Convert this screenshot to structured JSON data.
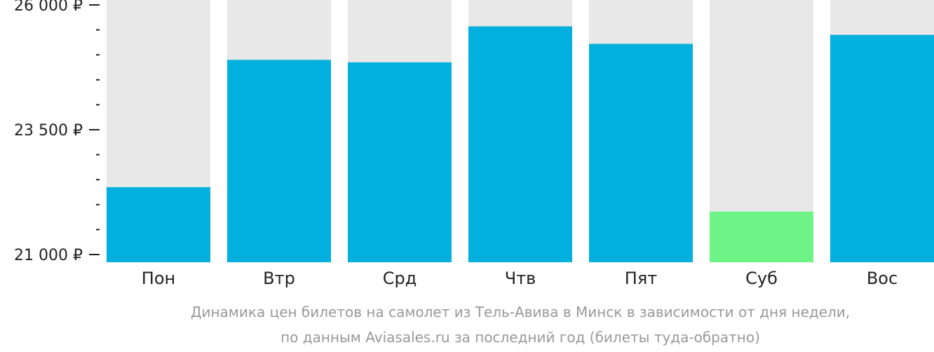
{
  "chart_data": {
    "type": "bar",
    "categories": [
      "Пон",
      "Втр",
      "Срд",
      "Чтв",
      "Пят",
      "Суб",
      "Вос"
    ],
    "values": [
      22350,
      24900,
      24850,
      25570,
      25220,
      21860,
      25400
    ],
    "ylim": [
      21000,
      26000
    ],
    "major_ticks": [
      {
        "value": 26000,
        "label": "26 000 ₽"
      },
      {
        "value": 23500,
        "label": "23 500 ₽"
      },
      {
        "value": 21000,
        "label": "21 000 ₽"
      }
    ],
    "minor_ticks": [
      21500,
      22000,
      22500,
      23000,
      24000,
      24500,
      25000,
      25500
    ],
    "highlight_index": 5,
    "colors": {
      "bar": "#01b0dc",
      "highlight": "#6ef486",
      "background_column": "#e8e8e8",
      "axis": "#222222",
      "caption": "#999999"
    },
    "caption_line_1": "Динамика цен билетов на самолет из Тель-Авива в Минск в зависимости от дня недели,",
    "caption_line_2": "по данным Aviasales.ru за последний год (билеты туда-обратно)"
  }
}
